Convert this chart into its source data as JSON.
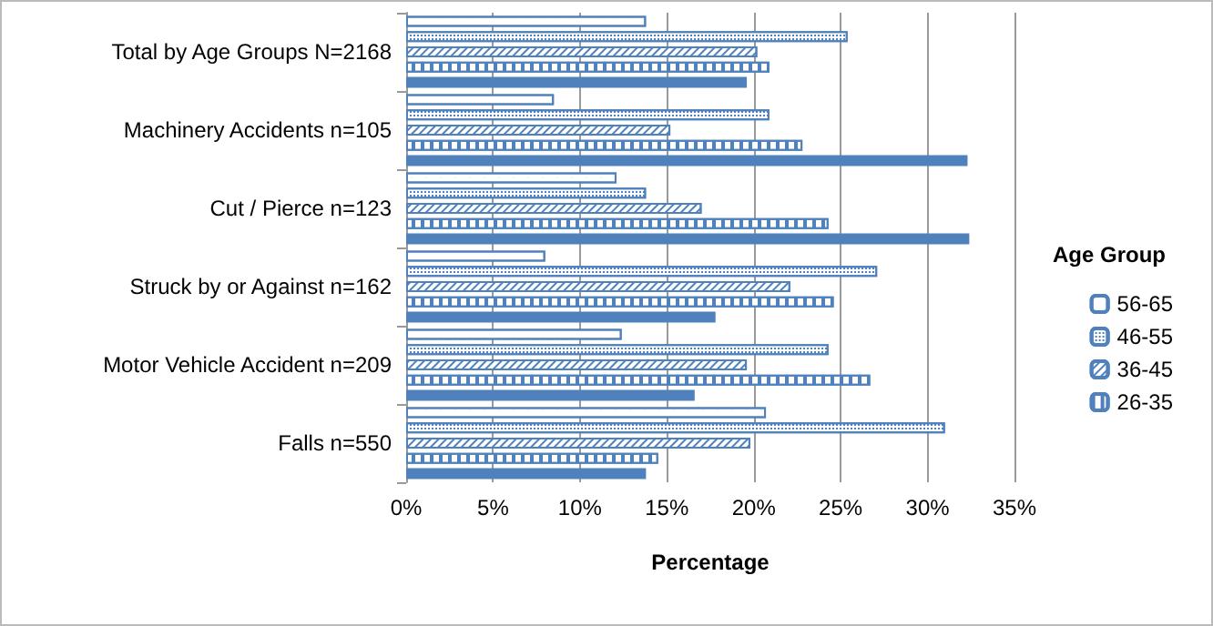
{
  "chart_data": {
    "type": "bar",
    "orientation": "horizontal",
    "xlabel": "Percentage",
    "legend_title": "Age Group",
    "legend": "right",
    "grid": "x",
    "categories": [
      "Total by Age Groups N=2168",
      "Machinery Accidents n=105",
      "Cut / Pierce n=123",
      "Struck by or Against n=162",
      "Motor Vehicle Accident n=209",
      "Falls n=550"
    ],
    "xlim": [
      0,
      35
    ],
    "xticks": [
      {
        "value": 0,
        "label": "0%"
      },
      {
        "value": 5,
        "label": "5%"
      },
      {
        "value": 10,
        "label": "10%"
      },
      {
        "value": 15,
        "label": "15%"
      },
      {
        "value": 20,
        "label": "20%"
      },
      {
        "value": 25,
        "label": "25%"
      },
      {
        "value": 30,
        "label": "30%"
      },
      {
        "value": 35,
        "label": "35%"
      }
    ],
    "series": [
      {
        "name": "56-65",
        "color": "#4f81bd",
        "values": [
          13.8,
          8.5,
          12.1,
          8.0,
          12.4,
          20.7
        ]
      },
      {
        "name": "46-55",
        "color": "#4f81bd",
        "values": [
          25.4,
          20.9,
          13.8,
          27.1,
          24.3,
          31.0
        ]
      },
      {
        "name": "36-45",
        "color": "#4f81bd",
        "values": [
          20.2,
          15.2,
          17.0,
          22.1,
          19.6,
          19.8
        ]
      },
      {
        "name": "26-35",
        "color": "#4f81bd",
        "values": [
          20.9,
          22.8,
          24.3,
          24.6,
          26.7,
          14.5
        ]
      },
      {
        "color": "#4f81bd",
        "values": [
          19.6,
          32.3,
          32.4,
          17.8,
          16.6,
          13.8
        ]
      }
    ]
  }
}
